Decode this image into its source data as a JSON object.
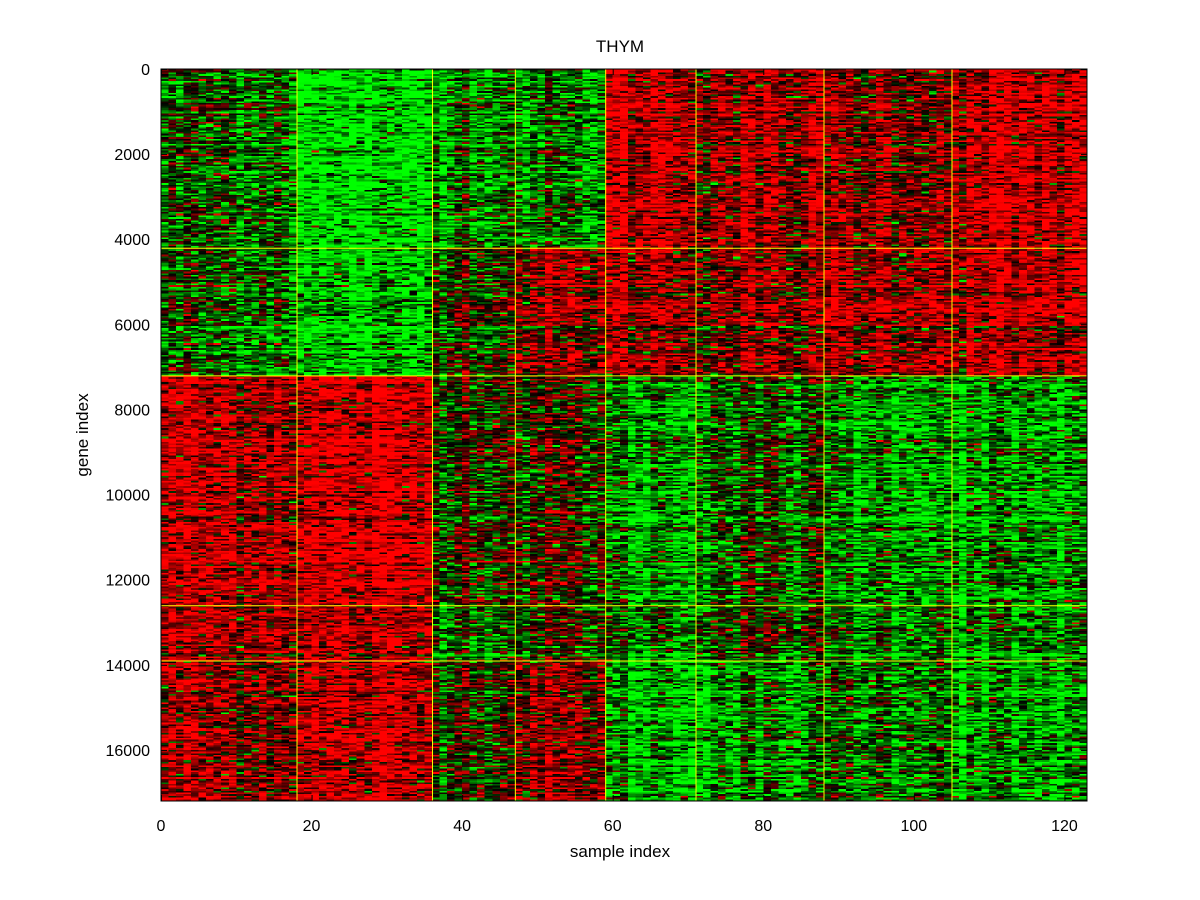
{
  "chart_data": {
    "type": "heatmap",
    "title": "THYM",
    "xlabel": "sample index",
    "ylabel": "gene index",
    "xlim": [
      0,
      123
    ],
    "ylim": [
      0,
      17200
    ],
    "y_reversed": true,
    "grid": false,
    "x_ticks": [
      0,
      20,
      40,
      60,
      80,
      100,
      120
    ],
    "y_ticks": [
      0,
      2000,
      4000,
      6000,
      8000,
      10000,
      12000,
      14000,
      16000
    ],
    "colormap": {
      "low": "#00ff00",
      "mid": "#000000",
      "high": "#ff0000"
    },
    "separator_color": "#ffff00",
    "column_group_boundaries": [
      18,
      36,
      47,
      59,
      71,
      88,
      105
    ],
    "row_group_boundaries": [
      4200,
      7200,
      12600,
      13900
    ],
    "block_mean_values": [
      [
        -0.25,
        -1.0,
        -0.3,
        -0.45,
        0.8,
        0.55,
        0.5,
        0.75
      ],
      [
        -0.3,
        -0.85,
        0.05,
        0.45,
        0.6,
        0.4,
        0.65,
        0.7
      ],
      [
        0.7,
        0.8,
        0.1,
        0.0,
        -0.6,
        -0.3,
        -0.55,
        -0.65
      ],
      [
        0.55,
        0.6,
        -0.25,
        -0.1,
        -0.4,
        -0.15,
        -0.35,
        -0.55
      ],
      [
        0.55,
        0.7,
        0.1,
        0.45,
        -0.7,
        -0.55,
        -0.3,
        -0.6
      ]
    ]
  }
}
